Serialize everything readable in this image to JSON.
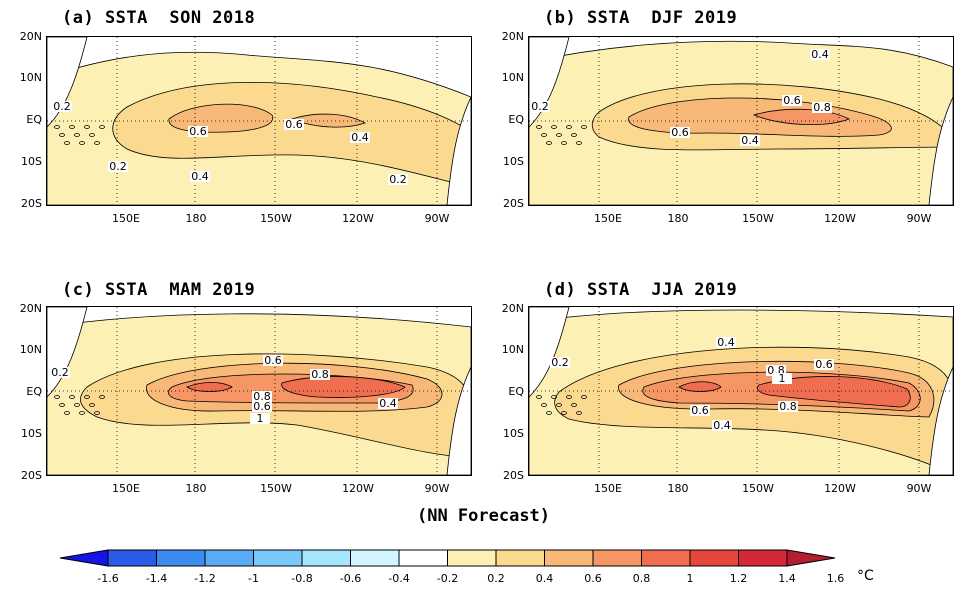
{
  "panels": [
    {
      "title": "(a) SSTA  SON 2018",
      "contours": [
        "0.2",
        "0.6",
        "0.6",
        "0.4",
        "0.4",
        "0.2",
        "0.2"
      ]
    },
    {
      "title": "(b) SSTA  DJF 2019",
      "contours": [
        "0.4",
        "0.2",
        "0.6",
        "0.8",
        "0.6",
        "0.4"
      ]
    },
    {
      "title": "(c) SSTA  MAM 2019",
      "contours": [
        "0.2",
        "0.6",
        "0.8",
        "0.8",
        "0.6",
        "0.4",
        "1"
      ]
    },
    {
      "title": "(d) SSTA  JJA 2019",
      "contours": [
        "0.4",
        "0.2",
        "0.8",
        "0.6",
        "1",
        "0.6",
        "0.8",
        "0.4"
      ]
    }
  ],
  "lat_labels": [
    "20N",
    "10N",
    "EQ",
    "10S",
    "20S"
  ],
  "lon_labels": [
    "150E",
    "180",
    "150W",
    "120W",
    "90W"
  ],
  "footer": "(NN Forecast)",
  "colorbar": {
    "labels": [
      "-1.6",
      "-1.4",
      "-1.2",
      "-1",
      "-0.8",
      "-0.6",
      "-0.4",
      "-0.2",
      "0.2",
      "0.4",
      "0.6",
      "0.8",
      "1",
      "1.2",
      "1.4",
      "1.6"
    ],
    "colors": [
      "#1414e6",
      "#2a5ae6",
      "#3c8cf0",
      "#5aaaf5",
      "#78c8fa",
      "#a5e6fc",
      "#d2f5ff",
      "#ffffff",
      "#fdf0b4",
      "#fbd98f",
      "#f8b878",
      "#f59664",
      "#f06e50",
      "#e6463c",
      "#d2283a",
      "#b41e32"
    ],
    "unit": "°C"
  }
}
